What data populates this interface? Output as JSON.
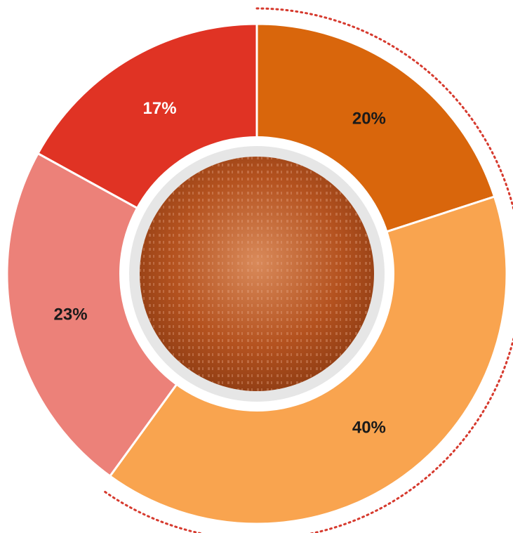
{
  "chart_data": {
    "type": "donut",
    "categories": [
      null,
      null,
      null,
      null
    ],
    "values": [
      20,
      40,
      23,
      17
    ],
    "value_labels": [
      "20%",
      "40%",
      "23%",
      "17%"
    ],
    "colors": [
      "#d9660c",
      "#f9a44f",
      "#ec8179",
      "#e03324"
    ],
    "label_colors": [
      "#1a1a1a",
      "#1a1a1a",
      "#1a1a1a",
      "#ffffff"
    ]
  }
}
